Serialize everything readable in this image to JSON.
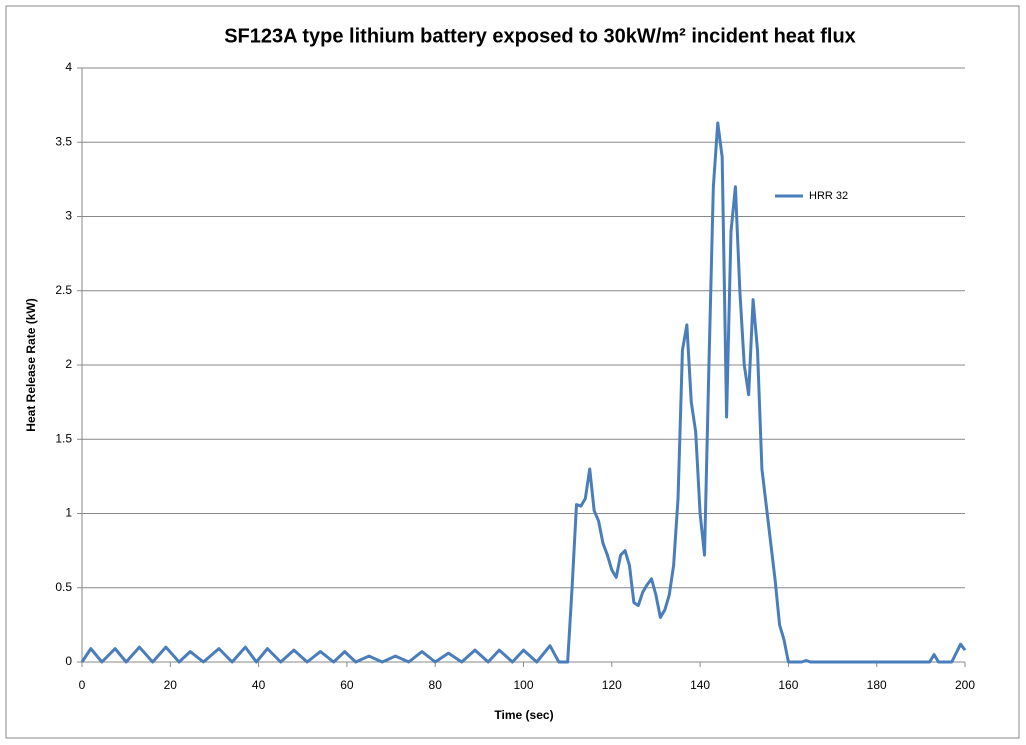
{
  "chart_data": {
    "type": "line",
    "title": "SF123A type lithium battery exposed to 30kW/m² incident heat flux",
    "xlabel": "Time (sec)",
    "ylabel": "Heat Release Rate (kW)",
    "x": [
      0,
      2,
      4.5,
      7.5,
      10,
      13,
      16,
      19,
      22,
      24.5,
      27.5,
      31,
      34,
      37,
      39.5,
      42,
      45,
      48,
      51,
      54,
      57,
      59.5,
      62,
      65,
      68,
      71,
      74,
      77,
      80,
      83,
      86,
      89,
      92,
      94.5,
      97.5,
      100,
      103,
      106,
      108,
      110,
      111,
      112,
      113,
      114,
      115,
      116,
      117,
      118,
      119,
      120,
      121,
      122,
      123,
      124,
      125,
      126,
      127,
      128,
      129,
      130,
      131,
      132,
      133,
      134,
      135,
      136,
      137,
      138,
      139,
      140,
      141,
      142,
      143,
      144,
      145,
      146,
      147,
      148,
      149,
      150,
      151,
      152,
      153,
      154,
      155,
      156,
      157,
      158,
      159,
      160,
      163,
      164,
      165,
      192,
      193,
      194,
      197,
      199,
      200
    ],
    "series": [
      {
        "name": "HRR 32",
        "color": "#4a7ebb",
        "values": [
          0,
          0.09,
          0,
          0.09,
          0,
          0.1,
          0,
          0.1,
          0,
          0.07,
          0,
          0.09,
          0,
          0.1,
          0,
          0.09,
          0,
          0.08,
          0,
          0.07,
          0,
          0.07,
          0,
          0.04,
          0,
          0.04,
          0,
          0.07,
          0,
          0.06,
          0,
          0.08,
          0,
          0.08,
          0,
          0.08,
          0,
          0.11,
          0,
          0,
          0.5,
          1.06,
          1.05,
          1.1,
          1.3,
          1.02,
          0.95,
          0.8,
          0.72,
          0.62,
          0.57,
          0.72,
          0.75,
          0.65,
          0.4,
          0.38,
          0.47,
          0.52,
          0.56,
          0.45,
          0.3,
          0.35,
          0.45,
          0.65,
          1.1,
          2.1,
          2.27,
          1.75,
          1.55,
          1.0,
          0.72,
          2.0,
          3.2,
          3.63,
          3.4,
          1.65,
          2.9,
          3.2,
          2.5,
          2.0,
          1.8,
          2.44,
          2.1,
          1.3,
          1.05,
          0.8,
          0.55,
          0.25,
          0.15,
          0,
          0,
          0.01,
          0,
          0,
          0.05,
          0,
          0,
          0.12,
          0.08
        ]
      }
    ],
    "xlim": [
      0,
      200
    ],
    "xticks": [
      0,
      20,
      40,
      60,
      80,
      100,
      120,
      140,
      160,
      180,
      200
    ],
    "ylim": [
      0,
      4
    ],
    "yticks": [
      0,
      0.5,
      1,
      1.5,
      2,
      2.5,
      3,
      3.5,
      4
    ],
    "grid": true,
    "legend_position": "upper right"
  }
}
